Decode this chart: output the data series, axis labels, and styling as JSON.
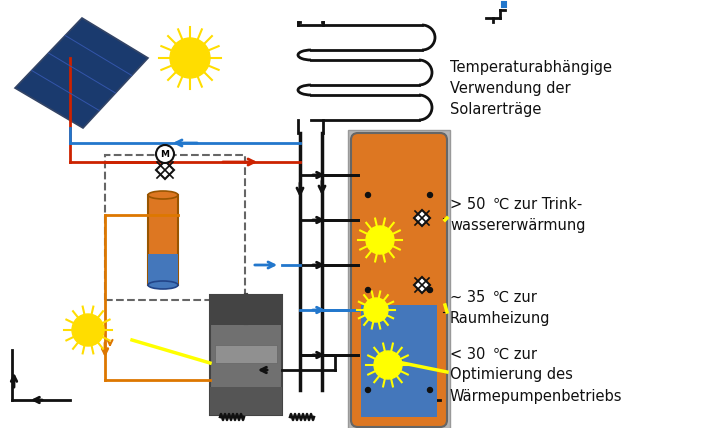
{
  "bg": "#ffffff",
  "K": "#111111",
  "R": "#cc2200",
  "B": "#2277cc",
  "O": "#dd7700",
  "Y": "#ffff00",
  "G": "#888888",
  "DG": "#444444",
  "LG": "#bbbbbb",
  "TH": "#dd7722",
  "TC": "#4477bb",
  "PB": "#1a3a6e",
  "lw": 2.0,
  "label_top": "Temperaturabhängige\nVerwendung der\nSolarerträge",
  "label_hot": "> 50  ℃ zur Trink-\nwassererwärmung",
  "label_mid": "~ 35  ℃ zur\nRaumheizung",
  "label_cold": "< 30  ℃ zur\nOptimierung des\nWärmepumpenbetriebs"
}
